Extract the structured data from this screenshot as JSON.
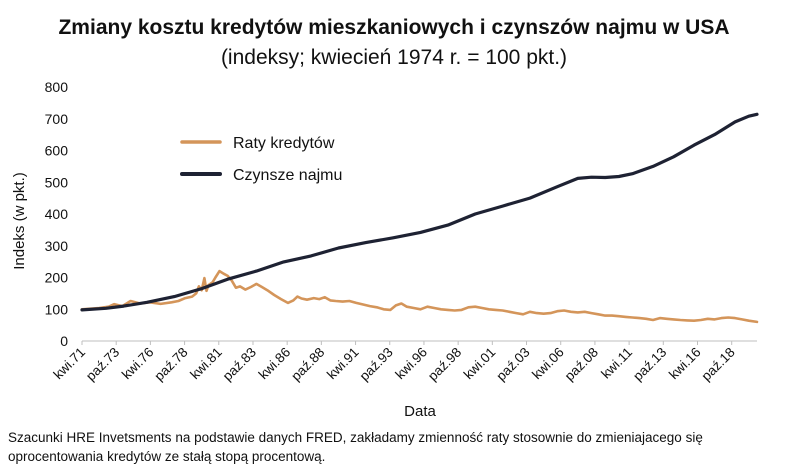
{
  "chart_data": {
    "type": "line",
    "title": "Zmiany kosztu kredytów mieszkaniowych i czynszów najmu w USA",
    "subtitle": "(indeksy; kwiecień 1974 r. = 100 pkt.)",
    "xlabel": "Data",
    "ylabel": "Indeks (w pkt.)",
    "ylim": [
      0,
      800
    ],
    "yticks": [
      0,
      100,
      200,
      300,
      400,
      500,
      600,
      700,
      800
    ],
    "x_ticks": [
      "kwi.71",
      "paź.73",
      "kwi.76",
      "paź.78",
      "kwi.81",
      "paź.83",
      "kwi.86",
      "paź.88",
      "kwi.91",
      "paź.93",
      "kwi.96",
      "paź.98",
      "kwi.01",
      "paź.03",
      "kwi.06",
      "paź.08",
      "kwi.11",
      "paź.13",
      "kwi.16",
      "paź.18"
    ],
    "x_range": [
      1971.25,
      2020.6
    ],
    "legend_position": "upper-left",
    "series": [
      {
        "name": "Raty kredytów",
        "color": "#D4955A",
        "x": [
          1971.25,
          1972.0,
          1972.5,
          1973.2,
          1973.6,
          1974.2,
          1974.8,
          1975.5,
          1976.2,
          1977.0,
          1977.8,
          1978.3,
          1978.8,
          1979.3,
          1979.6,
          1979.8,
          1980.0,
          1980.2,
          1980.35,
          1980.5,
          1980.8,
          1981.0,
          1981.3,
          1981.6,
          1981.9,
          1982.2,
          1982.5,
          1982.8,
          1983.2,
          1983.6,
          1984.0,
          1984.4,
          1984.8,
          1985.3,
          1985.8,
          1986.3,
          1986.7,
          1987.0,
          1987.3,
          1987.7,
          1988.2,
          1988.6,
          1989.0,
          1989.4,
          1989.8,
          1990.3,
          1990.8,
          1991.3,
          1991.8,
          1992.3,
          1992.8,
          1993.3,
          1993.8,
          1994.2,
          1994.6,
          1995.0,
          1995.5,
          1996.0,
          1996.5,
          1997.0,
          1997.5,
          1998.0,
          1998.5,
          1999.0,
          1999.5,
          2000.0,
          2000.5,
          2001.0,
          2001.5,
          2002.0,
          2002.5,
          2003.0,
          2003.5,
          2004.0,
          2004.5,
          2005.0,
          2005.5,
          2006.0,
          2006.5,
          2007.0,
          2007.5,
          2008.0,
          2008.5,
          2009.0,
          2009.5,
          2010.0,
          2010.5,
          2011.0,
          2011.5,
          2012.0,
          2012.5,
          2013.0,
          2013.5,
          2014.0,
          2014.5,
          2015.0,
          2015.5,
          2016.0,
          2016.5,
          2017.0,
          2017.5,
          2018.0,
          2018.5,
          2019.0,
          2019.5,
          2020.0,
          2020.6
        ],
        "values": [
          100,
          102,
          104,
          108,
          116,
          110,
          126,
          118,
          122,
          117,
          122,
          126,
          135,
          140,
          150,
          172,
          160,
          198,
          158,
          176,
          185,
          200,
          220,
          212,
          205,
          190,
          168,
          172,
          162,
          170,
          180,
          170,
          160,
          145,
          132,
          120,
          128,
          140,
          134,
          130,
          135,
          132,
          138,
          128,
          126,
          124,
          126,
          120,
          115,
          110,
          106,
          100,
          98,
          112,
          118,
          108,
          104,
          100,
          108,
          104,
          100,
          98,
          96,
          98,
          106,
          108,
          104,
          100,
          98,
          96,
          92,
          88,
          84,
          92,
          88,
          86,
          88,
          94,
          96,
          92,
          90,
          92,
          88,
          84,
          80,
          80,
          78,
          76,
          74,
          72,
          70,
          66,
          72,
          70,
          68,
          66,
          65,
          64,
          66,
          70,
          68,
          72,
          74,
          72,
          68,
          64,
          60
        ]
      },
      {
        "name": "Czynsze najmu",
        "color": "#1E2233",
        "x": [
          1971.25,
          1973.0,
          1974.3,
          1976.0,
          1978.0,
          1980.0,
          1982.0,
          1984.0,
          1986.0,
          1988.0,
          1990.0,
          1992.0,
          1994.0,
          1996.0,
          1998.0,
          2000.0,
          2002.0,
          2004.0,
          2006.0,
          2007.5,
          2008.5,
          2009.5,
          2010.5,
          2011.5,
          2013.0,
          2014.5,
          2016.0,
          2017.5,
          2019.0,
          2020.0,
          2020.6
        ],
        "values": [
          98,
          103,
          110,
          122,
          140,
          165,
          196,
          220,
          249,
          268,
          293,
          310,
          325,
          342,
          365,
          400,
          425,
          450,
          486,
          512,
          516,
          515,
          518,
          527,
          550,
          580,
          617,
          650,
          690,
          708,
          714
        ]
      }
    ]
  },
  "footnote_line1": "Szacunki HRE Invetsments na podstawie danych FRED, zakładamy zmienność raty stosownie do zmieniajacego się",
  "footnote_line2": "oprocentowania kredytów ze stałą stopą procentową."
}
